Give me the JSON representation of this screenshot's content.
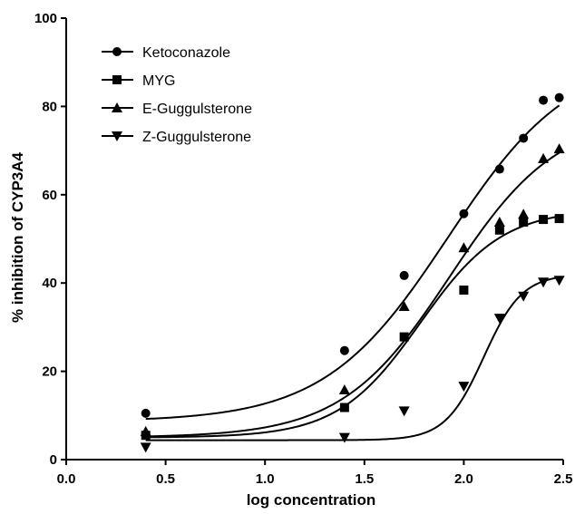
{
  "chart_data": {
    "type": "scatter",
    "title": "",
    "xlabel": "log concentration",
    "ylabel": "% inhibition of CYP3A4",
    "xlim": [
      0.0,
      2.5
    ],
    "ylim": [
      0,
      100
    ],
    "x_ticks": [
      "0.0",
      "0.5",
      "1.0",
      "1.5",
      "2.0",
      "2.5"
    ],
    "y_ticks": [
      "0",
      "20",
      "40",
      "60",
      "80",
      "100"
    ],
    "grid": false,
    "legend_position": "top-left",
    "fit_curves": true,
    "colors": {
      "series": "#000000",
      "axis": "#000000",
      "background": "#ffffff"
    },
    "series": [
      {
        "name": "Ketoconazole",
        "marker": "circle",
        "points": [
          {
            "x": 0.4,
            "y": 10.5
          },
          {
            "x": 1.4,
            "y": 24.7
          },
          {
            "x": 1.7,
            "y": 41.7
          },
          {
            "x": 2.0,
            "y": 55.7
          },
          {
            "x": 2.18,
            "y": 65.8
          },
          {
            "x": 2.3,
            "y": 72.8
          },
          {
            "x": 2.4,
            "y": 81.4
          },
          {
            "x": 2.48,
            "y": 82.0
          }
        ],
        "fit": {
          "bottom": 8.6,
          "top": 92.0,
          "logec50": 1.92,
          "hill": 1.4
        }
      },
      {
        "name": "MYG",
        "marker": "square",
        "points": [
          {
            "x": 0.4,
            "y": 5.5
          },
          {
            "x": 1.4,
            "y": 11.8
          },
          {
            "x": 1.7,
            "y": 27.8
          },
          {
            "x": 2.0,
            "y": 38.4
          },
          {
            "x": 2.18,
            "y": 52.0
          },
          {
            "x": 2.3,
            "y": 53.8
          },
          {
            "x": 2.4,
            "y": 54.4
          },
          {
            "x": 2.48,
            "y": 54.6
          }
        ],
        "fit": {
          "bottom": 5.0,
          "top": 56.8,
          "logec50": 1.78,
          "hill": 2.1
        }
      },
      {
        "name": "E-Guggulsterone",
        "marker": "triangle-up",
        "points": [
          {
            "x": 0.4,
            "y": 6.4
          },
          {
            "x": 1.4,
            "y": 15.8
          },
          {
            "x": 1.7,
            "y": 34.7
          },
          {
            "x": 2.0,
            "y": 48.0
          },
          {
            "x": 2.18,
            "y": 53.8
          },
          {
            "x": 2.3,
            "y": 55.6
          },
          {
            "x": 2.4,
            "y": 68.2
          },
          {
            "x": 2.48,
            "y": 70.4
          }
        ],
        "fit": {
          "bottom": 5.0,
          "top": 78.0,
          "logec50": 1.93,
          "hill": 1.6
        }
      },
      {
        "name": "Z-Guggulsterone",
        "marker": "triangle-down",
        "points": [
          {
            "x": 0.4,
            "y": 2.8
          },
          {
            "x": 1.4,
            "y": 5.0
          },
          {
            "x": 1.7,
            "y": 11.0
          },
          {
            "x": 2.0,
            "y": 16.6
          },
          {
            "x": 2.18,
            "y": 32.0
          },
          {
            "x": 2.3,
            "y": 37.0
          },
          {
            "x": 2.4,
            "y": 40.2
          },
          {
            "x": 2.48,
            "y": 40.6
          }
        ],
        "fit": {
          "bottom": 4.4,
          "top": 42.0,
          "logec50": 2.1,
          "hill": 4.5
        }
      }
    ]
  }
}
